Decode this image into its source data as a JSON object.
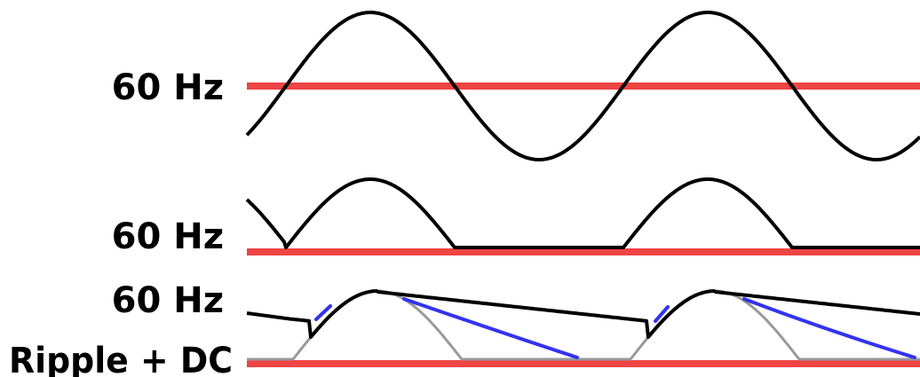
{
  "labels": {
    "top": "60 Hz",
    "middle": "60 Hz",
    "bottom": "60 Hz",
    "bottom_second": "Ripple + DC"
  },
  "colors": {
    "baseline": "#ee4444",
    "waveform": "#000000",
    "capacitor_discharge": "#3333ee",
    "rectified_reference": "#999999",
    "background": "#ffffff"
  }
}
